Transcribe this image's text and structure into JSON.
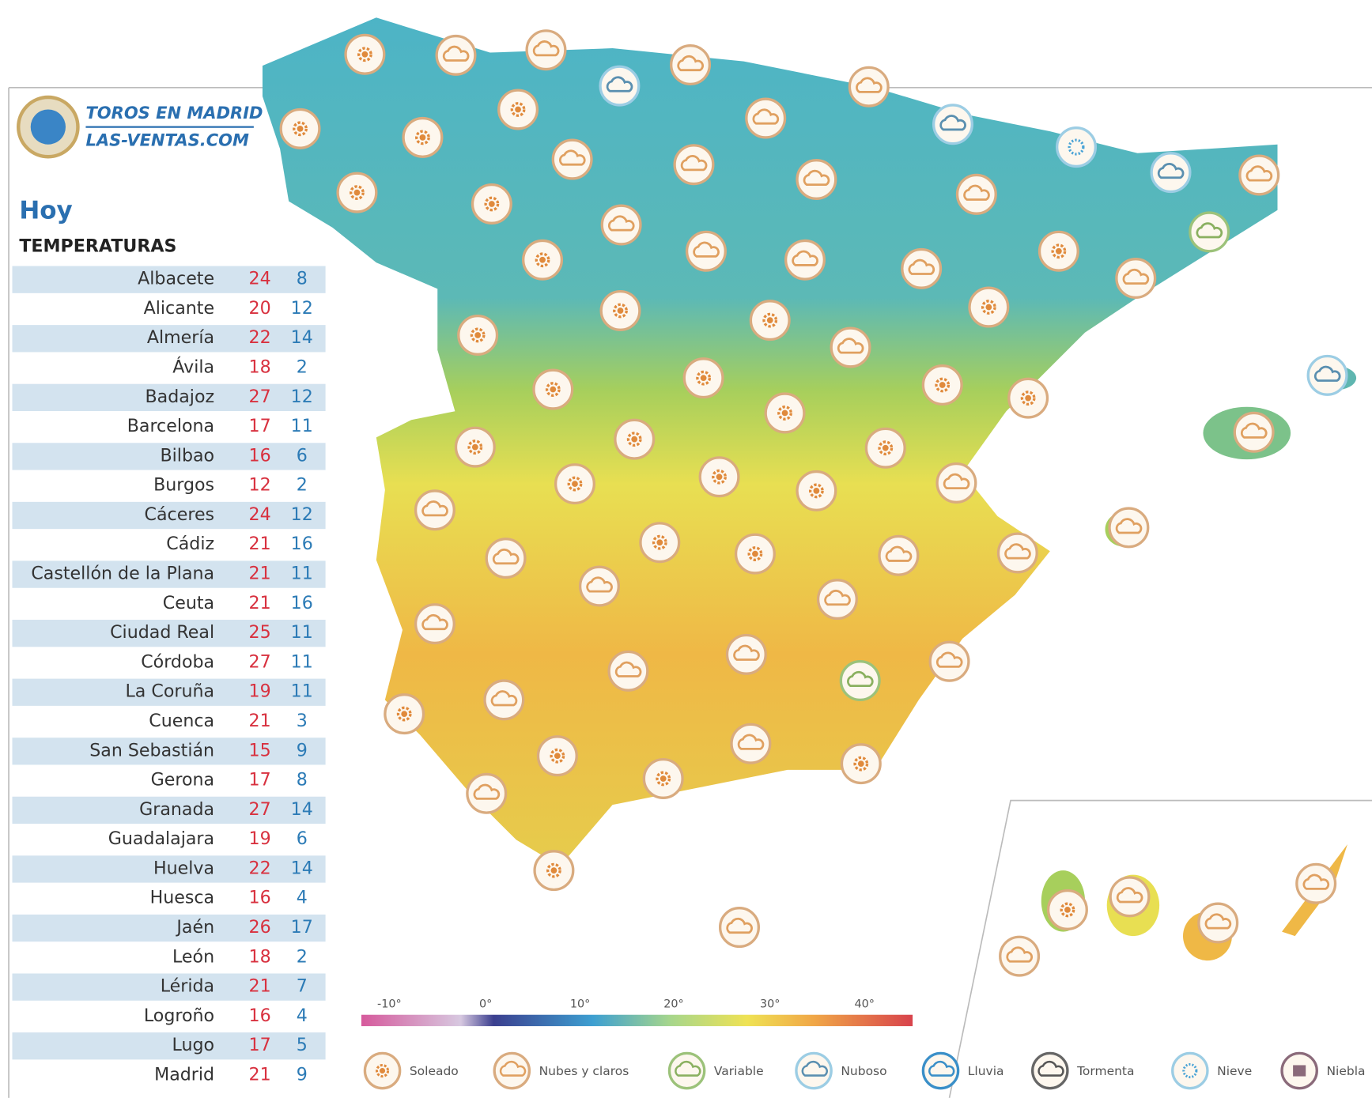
{
  "header": {
    "logo_line1": "TOROS EN MADRID",
    "logo_line2": "LAS-VENTAS.COM",
    "day": "Hoy",
    "section": "TEMPERATURAS"
  },
  "table": {
    "rows": [
      [
        "Albacete",
        24,
        8
      ],
      [
        "Alicante",
        20,
        12
      ],
      [
        "Almería",
        22,
        14
      ],
      [
        "Ávila",
        18,
        2
      ],
      [
        "Badajoz",
        27,
        12
      ],
      [
        "Barcelona",
        17,
        11
      ],
      [
        "Bilbao",
        16,
        6
      ],
      [
        "Burgos",
        12,
        2
      ],
      [
        "Cáceres",
        24,
        12
      ],
      [
        "Cádiz",
        21,
        16
      ],
      [
        "Castellón de la Plana",
        21,
        11
      ],
      [
        "Ceuta",
        21,
        16
      ],
      [
        "Ciudad Real",
        25,
        11
      ],
      [
        "Córdoba",
        27,
        11
      ],
      [
        "La Coruña",
        19,
        11
      ],
      [
        "Cuenca",
        21,
        3
      ],
      [
        "San Sebastián",
        15,
        9
      ],
      [
        "Gerona",
        17,
        8
      ],
      [
        "Granada",
        27,
        14
      ],
      [
        "Guadalajara",
        19,
        6
      ],
      [
        "Huelva",
        22,
        14
      ],
      [
        "Huesca",
        16,
        4
      ],
      [
        "Jaén",
        26,
        17
      ],
      [
        "León",
        18,
        2
      ],
      [
        "Lérida",
        21,
        7
      ],
      [
        "Logroño",
        16,
        4
      ],
      [
        "Lugo",
        17,
        5
      ],
      [
        "Madrid",
        21,
        9
      ]
    ]
  },
  "scale": {
    "labels": [
      "-10°",
      "0°",
      "10°",
      "20°",
      "30°",
      "40°"
    ]
  },
  "legend": [
    "Soleado",
    "Nubes y claros",
    "Variable",
    "Nuboso",
    "Lluvia",
    "Tormenta",
    "Nieve",
    "Niebla"
  ]
}
